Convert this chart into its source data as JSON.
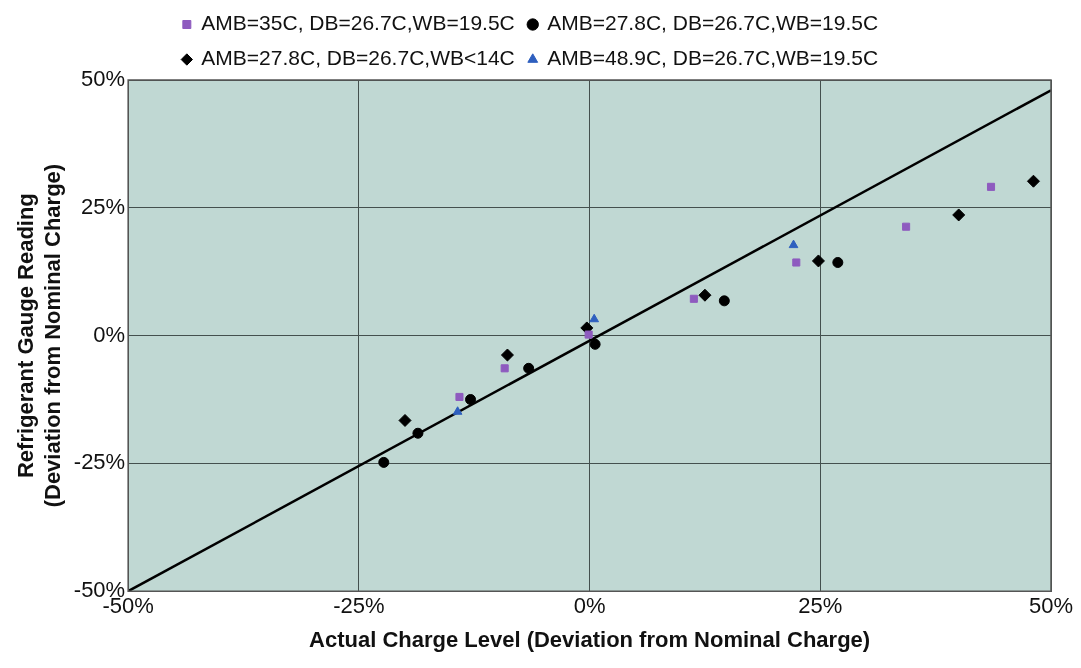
{
  "chart_data": {
    "type": "scatter",
    "xlabel": "Actual Charge Level (Deviation from Nominal Charge)",
    "ylabel": "Refrigerant Gauge Reading\n(Deviation from Nominal Charge)",
    "xlim": [
      -50,
      50
    ],
    "ylim": [
      -50,
      50
    ],
    "xticks": [
      {
        "value": -50,
        "label": "-50%"
      },
      {
        "value": -25,
        "label": "-25%"
      },
      {
        "value": 0,
        "label": "0%"
      },
      {
        "value": 25,
        "label": "25%"
      },
      {
        "value": 50,
        "label": "50%"
      }
    ],
    "yticks": [
      {
        "value": -50,
        "label": "-50%"
      },
      {
        "value": -25,
        "label": "-25%"
      },
      {
        "value": 0,
        "label": "0%"
      },
      {
        "value": 25,
        "label": "25%"
      },
      {
        "value": 50,
        "label": "50%"
      }
    ],
    "grid": true,
    "legend": "top",
    "series": [
      {
        "name": "AMB=35C, DB=26.7C,WB=19.5C",
        "color": "#8e5bbf",
        "marker": "square",
        "x": [
          -14.1,
          -9.2,
          -0.1,
          11.3,
          22.4,
          34.3,
          43.5
        ],
        "values": [
          -12.0,
          -6.4,
          0.2,
          7.2,
          14.3,
          21.3,
          29.1
        ]
      },
      {
        "name": "AMB=27.8C, DB=26.7C,WB=19.5C",
        "color": "#000000",
        "marker": "circle",
        "x": [
          -22.3,
          -18.6,
          -12.9,
          -6.6,
          0.6,
          14.6,
          26.9
        ],
        "values": [
          -24.8,
          -19.1,
          -12.5,
          -6.4,
          -1.7,
          6.8,
          14.3
        ]
      },
      {
        "name": "AMB=27.8C, DB=26.7C,WB<14C",
        "color": "#000000",
        "marker": "diamond",
        "x": [
          -20.0,
          -8.9,
          -0.3,
          12.5,
          24.8,
          40.0,
          48.1
        ],
        "values": [
          -16.6,
          -3.8,
          1.5,
          7.9,
          14.6,
          23.6,
          30.2
        ]
      },
      {
        "name": "AMB=48.9C, DB=26.7C,WB=19.5C",
        "color": "#2e5fbf",
        "marker": "triangle",
        "x": [
          -14.3,
          0.5,
          22.1
        ],
        "values": [
          -14.9,
          3.2,
          17.7
        ]
      },
      {
        "type": "line",
        "color": "#000000",
        "marker": "none",
        "x": [
          -50,
          50
        ],
        "values": [
          -50,
          48
        ]
      }
    ]
  }
}
